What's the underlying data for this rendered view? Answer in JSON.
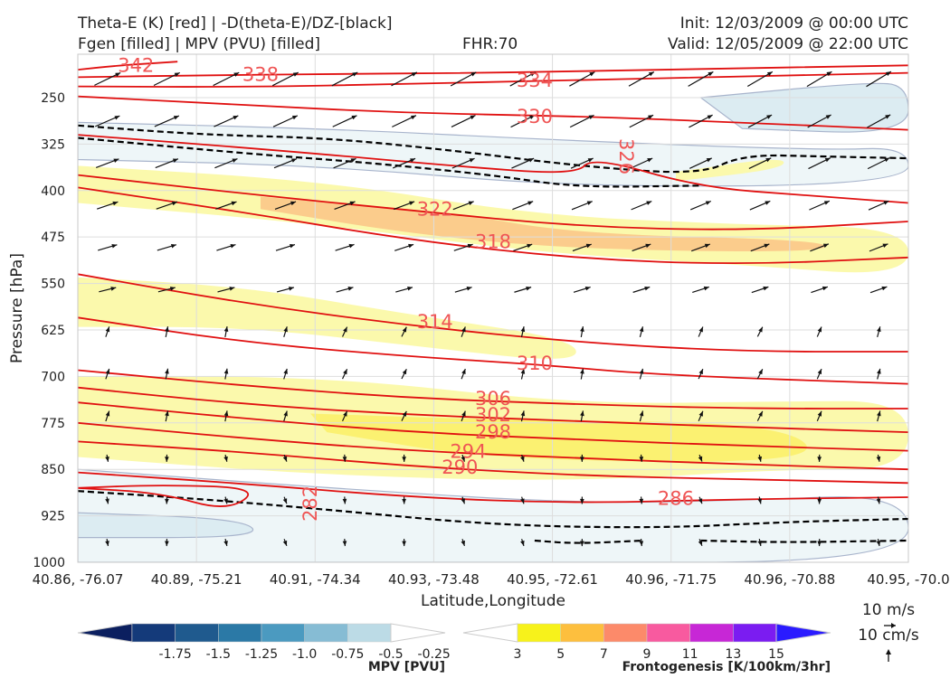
{
  "header": {
    "title_line1_left": "Theta-E (K) [red] | -D(theta-E)/DZ-[black]",
    "title_line2_left": "Fgen [filled] | MPV (PVU) [filled]",
    "fhr": "FHR:70",
    "init": "Init: 12/03/2009 @ 00:00 UTC",
    "valid": "Valid: 12/05/2009 @ 22:00 UTC"
  },
  "chart_data": {
    "type": "cross-section",
    "xlabel": "Latitude,Longitude",
    "ylabel": "Pressure [hPa]",
    "x_ticks": [
      "40.86, -76.07",
      "40.89, -75.21",
      "40.91, -74.34",
      "40.93, -73.48",
      "40.95, -72.61",
      "40.96, -71.75",
      "40.96, -70.88",
      "40.95, -70.0"
    ],
    "y_ticks": [
      250,
      325,
      400,
      475,
      550,
      625,
      700,
      775,
      850,
      925,
      1000
    ],
    "ylim": [
      1000,
      180
    ],
    "grid": true,
    "theta_e_labels": [
      "342",
      "338",
      "334",
      "330",
      "326",
      "322",
      "318",
      "314",
      "310",
      "306",
      "302",
      "298",
      "294",
      "290",
      "286",
      "282"
    ],
    "theta_e_contours": [
      {
        "level": 342,
        "x": [
          0,
          0.05,
          0.12
        ],
        "p": [
          205,
          198,
          192
        ]
      },
      {
        "level": 338,
        "x": [
          0,
          0.15,
          0.3,
          0.5,
          0.7,
          1.0
        ],
        "p": [
          217,
          214,
          212,
          210,
          205,
          198
        ]
      },
      {
        "level": 334,
        "x": [
          0,
          0.2,
          0.4,
          0.55,
          0.8,
          1.0
        ],
        "p": [
          232,
          233,
          228,
          223,
          216,
          210
        ]
      },
      {
        "level": 330,
        "x": [
          0,
          0.2,
          0.4,
          0.6,
          0.8,
          1.0
        ],
        "p": [
          248,
          262,
          275,
          280,
          290,
          302
        ]
      },
      {
        "level": 326,
        "x": [
          0,
          0.25,
          0.45,
          0.6,
          0.62,
          0.75,
          0.88,
          1.0
        ],
        "p": [
          310,
          336,
          360,
          375,
          345,
          395,
          408,
          420
        ]
      },
      {
        "level": 322,
        "x": [
          0,
          0.2,
          0.4,
          0.6,
          0.8,
          1.0
        ],
        "p": [
          375,
          405,
          432,
          458,
          465,
          450
        ]
      },
      {
        "level": 318,
        "x": [
          0,
          0.2,
          0.4,
          0.6,
          0.8,
          1.0
        ],
        "p": [
          395,
          435,
          480,
          510,
          520,
          508
        ]
      },
      {
        "level": 314,
        "x": [
          0,
          0.2,
          0.4,
          0.6,
          0.8,
          1.0
        ],
        "p": [
          535,
          582,
          618,
          645,
          660,
          660
        ]
      },
      {
        "level": 310,
        "x": [
          0,
          0.2,
          0.4,
          0.55,
          0.7,
          1.0
        ],
        "p": [
          605,
          645,
          668,
          680,
          698,
          712
        ]
      },
      {
        "level": 306,
        "x": [
          0,
          0.2,
          0.4,
          0.6,
          0.8,
          1.0
        ],
        "p": [
          690,
          715,
          735,
          745,
          752,
          752
        ]
      },
      {
        "level": 302,
        "x": [
          0,
          0.2,
          0.4,
          0.6,
          0.8,
          1.0
        ],
        "p": [
          718,
          745,
          762,
          772,
          782,
          790
        ]
      },
      {
        "level": 298,
        "x": [
          0,
          0.2,
          0.4,
          0.6,
          0.8,
          1.0
        ],
        "p": [
          742,
          768,
          790,
          802,
          812,
          820
        ]
      },
      {
        "level": 294,
        "x": [
          0,
          0.2,
          0.4,
          0.6,
          0.8,
          1.0
        ],
        "p": [
          775,
          800,
          820,
          832,
          842,
          850
        ]
      },
      {
        "level": 290,
        "x": [
          0,
          0.2,
          0.4,
          0.6,
          0.8,
          1.0
        ],
        "p": [
          805,
          822,
          845,
          860,
          866,
          872
        ]
      },
      {
        "level": 286,
        "x": [
          0,
          0.2,
          0.4,
          0.6,
          0.8,
          1.0
        ],
        "p": [
          855,
          873,
          895,
          905,
          898,
          895
        ]
      },
      {
        "level": 282,
        "x": [
          0,
          0.1,
          0.18,
          0.22,
          0.1,
          0
        ],
        "p": [
          880,
          888,
          918,
          880,
          875,
          880
        ]
      }
    ],
    "stability_contours": [
      {
        "x": [
          0,
          0.15,
          0.3,
          0.45,
          0.6,
          0.75,
          0.8,
          0.9,
          1.0
        ],
        "p": [
          295,
          310,
          315,
          335,
          360,
          375,
          342,
          345,
          348
        ]
      },
      {
        "x": [
          0,
          0.2,
          0.35,
          0.5,
          0.6,
          0.75
        ],
        "p": [
          315,
          340,
          355,
          375,
          395,
          392
        ]
      },
      {
        "x": [
          0,
          0.15,
          0.3,
          0.5,
          0.7,
          0.85,
          1.0
        ],
        "p": [
          885,
          898,
          915,
          940,
          945,
          935,
          930
        ]
      },
      {
        "x": [
          0.55,
          0.6,
          0.68
        ],
        "p": [
          965,
          970,
          965
        ]
      },
      {
        "x": [
          0.75,
          0.85,
          1.0
        ],
        "p": [
          965,
          968,
          965
        ]
      }
    ],
    "mpv_regions": [
      {
        "x": [
          0,
          0.3,
          0.6,
          0.9,
          1.0,
          1.0,
          0.6,
          0.3,
          0
        ],
        "p": [
          290,
          300,
          320,
          335,
          330,
          390,
          395,
          360,
          350
        ],
        "value": -0.25
      },
      {
        "x": [
          0.75,
          0.95,
          1.0,
          1.0,
          0.8
        ],
        "p": [
          250,
          225,
          230,
          310,
          300
        ],
        "value": -0.5
      },
      {
        "x": [
          0,
          0.3,
          0.6,
          0.8,
          1.0,
          1.0,
          0.5,
          0
        ],
        "p": [
          850,
          880,
          905,
          900,
          890,
          1000,
          1000,
          1000
        ],
        "value": -0.25
      },
      {
        "x": [
          0,
          0.2,
          0.22,
          0
        ],
        "p": [
          920,
          930,
          960,
          960
        ],
        "value": -0.5
      }
    ],
    "fgen_regions": [
      {
        "x": [
          0,
          0.3,
          0.55,
          0.8,
          1.0,
          1.0,
          0.8,
          0.55,
          0.3,
          0
        ],
        "p": [
          360,
          385,
          440,
          455,
          460,
          540,
          520,
          500,
          455,
          420
        ],
        "value": 3
      },
      {
        "x": [
          0.22,
          0.45,
          0.6,
          0.9,
          0.9,
          0.6,
          0.4,
          0.22
        ],
        "p": [
          410,
          435,
          470,
          480,
          500,
          495,
          470,
          430
        ],
        "value": 7
      },
      {
        "x": [
          0.72,
          0.85,
          0.85,
          0.72
        ],
        "p": [
          370,
          345,
          365,
          385
        ],
        "value": 3
      },
      {
        "x": [
          0,
          0.2,
          0.4,
          0.6,
          0.6,
          0.4,
          0.2,
          0
        ],
        "p": [
          540,
          555,
          600,
          640,
          680,
          650,
          620,
          620
        ],
        "value": 3
      },
      {
        "x": [
          0,
          0.3,
          0.6,
          0.85,
          1.0,
          1.0,
          0.85,
          0.6,
          0.3,
          0
        ],
        "p": [
          700,
          700,
          745,
          740,
          740,
          850,
          850,
          870,
          860,
          830
        ],
        "value": 3
      },
      {
        "x": [
          0.28,
          0.5,
          0.85,
          0.9,
          0.5,
          0.3
        ],
        "p": [
          760,
          770,
          775,
          840,
          835,
          790
        ],
        "value": 5
      }
    ],
    "wind_barb_grid": {
      "cols": 14,
      "rows": 12
    },
    "mpv_colorbar": {
      "label": "MPV [PVU]",
      "ticks": [
        "-1.75",
        "-1.5",
        "-1.25",
        "-1.0",
        "-0.75",
        "-0.5",
        "-0.25"
      ],
      "colors": [
        "#0b1f5f",
        "#143a7a",
        "#1f5a8e",
        "#2b79a6",
        "#4b9ac0",
        "#86bcd4",
        "#bcdbe6",
        "#ffffff"
      ]
    },
    "fgen_colorbar": {
      "label": "Frontogenesis [K/100km/3hr]",
      "ticks": [
        "3",
        "5",
        "7",
        "9",
        "11",
        "13",
        "15"
      ],
      "colors": [
        "#ffffff",
        "#f7f21b",
        "#fdbf3e",
        "#fc8a6a",
        "#f85a9f",
        "#c727d6",
        "#7b1cf1",
        "#2a1bff"
      ]
    },
    "vector_key": {
      "horizontal": "10 m/s",
      "vertical": "10 cm/s"
    }
  }
}
